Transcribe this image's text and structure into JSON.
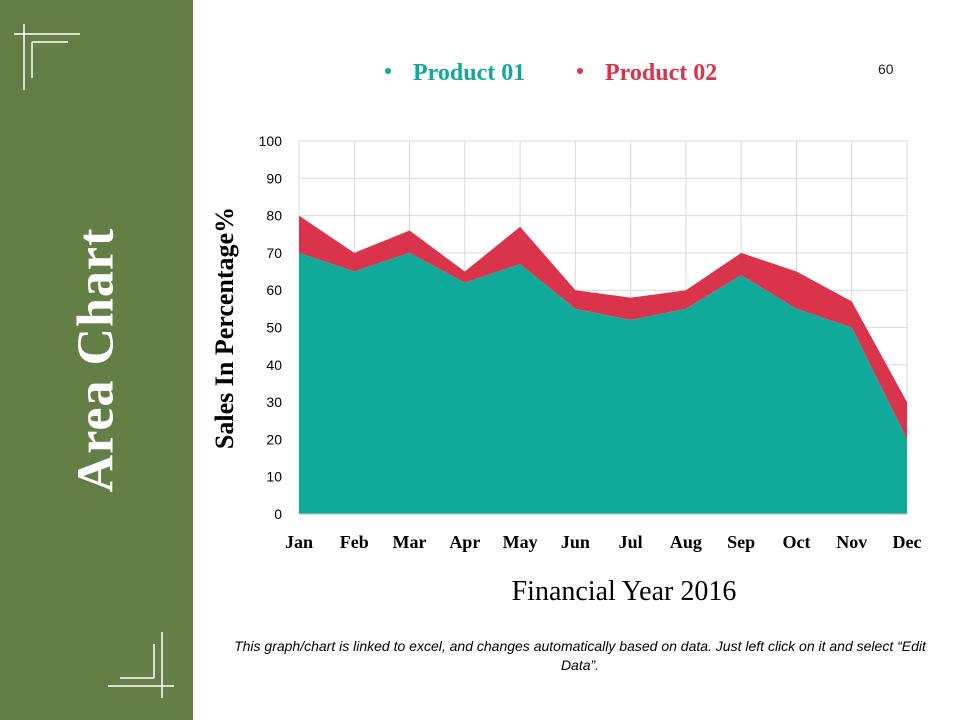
{
  "sidebar": {
    "title": "Area Chart"
  },
  "slide_number": "60",
  "footnote": "This graph/chart is linked to excel, and changes automatically based on data. Just left click on it and select “Edit Data”.",
  "colors": {
    "sidebar": "#637f46",
    "product01": "#0faa99",
    "product02": "#d9344b",
    "grid": "#d9d9d9"
  },
  "chart_data": {
    "type": "area",
    "stacked": true,
    "categories": [
      "Jan",
      "Feb",
      "Mar",
      "Apr",
      "May",
      "Jun",
      "Jul",
      "Aug",
      "Sep",
      "Oct",
      "Nov",
      "Dec"
    ],
    "series": [
      {
        "name": "Product 01",
        "values": [
          70,
          65,
          70,
          62,
          67,
          55,
          52,
          55,
          64,
          55,
          50,
          20
        ]
      },
      {
        "name": "Product 02",
        "values": [
          10,
          5,
          6,
          3,
          10,
          5,
          6,
          5,
          6,
          10,
          7,
          10
        ]
      }
    ],
    "title": "",
    "xlabel": "Financial Year 2016",
    "ylabel": "Sales In Percentage%",
    "ylim": [
      0,
      100
    ],
    "ytick_step": 10,
    "grid": true,
    "legend_position": "top"
  }
}
